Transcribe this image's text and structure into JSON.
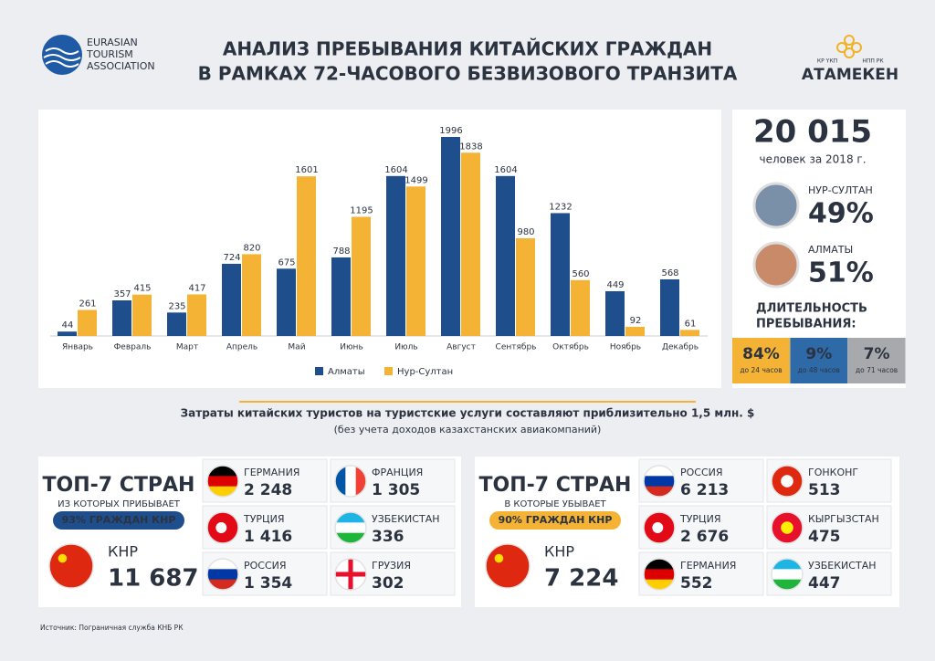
{
  "header": {
    "logo_left": [
      "EURASIAN",
      "TOURISM",
      "ASSOCIATION"
    ],
    "title": [
      "АНАЛИЗ ПРЕБЫВАНИЯ КИТАЙСКИХ ГРАЖДАН",
      "В РАМКАХ 72-ЧАСОВОГО БЕЗВИЗОВОГО ТРАНЗИТА"
    ],
    "logo_right": {
      "left_small": "КР ҮКП",
      "right_small": "НПП РК",
      "name": "АТАМЕКЕН"
    }
  },
  "chart_data": {
    "type": "bar",
    "categories": [
      "Январь",
      "Февраль",
      "Март",
      "Апрель",
      "Май",
      "Июнь",
      "Июль",
      "Август",
      "Сентябрь",
      "Октябрь",
      "Ноябрь",
      "Декабрь"
    ],
    "series": [
      {
        "name": "Алматы",
        "color": "#1f4e8c",
        "values": [
          44,
          357,
          235,
          724,
          675,
          788,
          1604,
          1996,
          1604,
          1232,
          449,
          568
        ]
      },
      {
        "name": "Нур-Султан",
        "color": "#f5b335",
        "values": [
          261,
          415,
          417,
          820,
          1601,
          1195,
          1499,
          1838,
          980,
          560,
          92,
          61
        ]
      }
    ],
    "legend": "bottom"
  },
  "summary": {
    "total": "20 015",
    "total_caption": "человек за 2018 г.",
    "cities": [
      {
        "name": "НУР-СУЛТАН",
        "share": "49%"
      },
      {
        "name": "АЛМАТЫ",
        "share": "51%"
      }
    ],
    "duration_title": [
      "ДЛИТЕЛЬНОСТЬ",
      "ПРЕБЫВАНИЯ:"
    ],
    "duration": [
      {
        "value": "84%",
        "label": "до 24 часов"
      },
      {
        "value": "9%",
        "label": "до 48 часов"
      },
      {
        "value": "7%",
        "label": "до 71 часов"
      }
    ]
  },
  "note": [
    "Затраты китайских туристов на туристские услуги составляют приблизительно 1,5 млн. $",
    "(без учета доходов казахстанских авиакомпаний)"
  ],
  "panels": [
    {
      "title": "ТОП-7 СТРАН",
      "subtitle": "ИЗ КОТОРЫХ ПРИБЫВАЕТ",
      "badge": "93% ГРАЖДАН КНР",
      "main": {
        "name": "КНР",
        "value": "11 687"
      },
      "countries": [
        {
          "name": "ГЕРМАНИЯ",
          "value": "2 248"
        },
        {
          "name": "ФРАНЦИЯ",
          "value": "1 305"
        },
        {
          "name": "ТУРЦИЯ",
          "value": "1 416"
        },
        {
          "name": "УЗБЕКИСТАН",
          "value": "336"
        },
        {
          "name": "РОССИЯ",
          "value": "1 354"
        },
        {
          "name": "ГРУЗИЯ",
          "value": "302"
        }
      ]
    },
    {
      "title": "ТОП-7 СТРАН",
      "subtitle": "В КОТОРЫЕ УБЫВАЕТ",
      "badge": "90% ГРАЖДАН КНР",
      "main": {
        "name": "КНР",
        "value": "7 224"
      },
      "countries": [
        {
          "name": "РОССИЯ",
          "value": "6 213"
        },
        {
          "name": "ГОНКОНГ",
          "value": "513"
        },
        {
          "name": "ТУРЦИЯ",
          "value": "2 676"
        },
        {
          "name": "КЫРГЫЗСТАН",
          "value": "475"
        },
        {
          "name": "ГЕРМАНИЯ",
          "value": "552"
        },
        {
          "name": "УЗБЕКИСТАН",
          "value": "447"
        }
      ]
    }
  ],
  "source": "Источник: Пограничная служба КНБ РК"
}
